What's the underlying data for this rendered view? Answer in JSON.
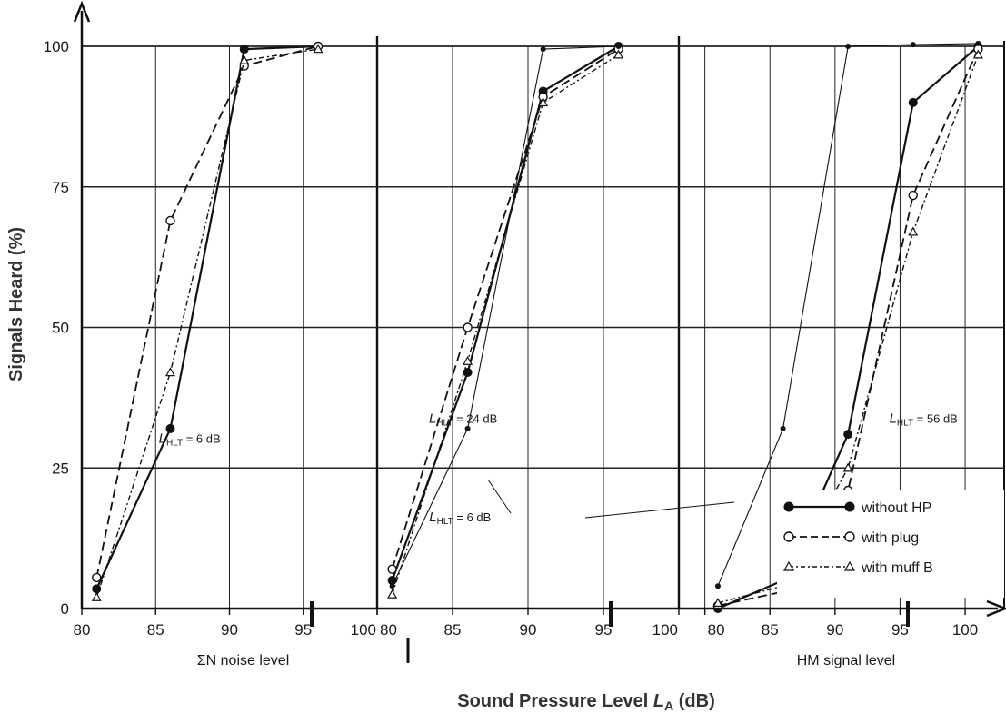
{
  "chart_data": {
    "type": "line",
    "title": "",
    "ylabel": "Signals Heard (%)",
    "xlabel_main": "Sound Pressure Level ",
    "xlabel_italic": "L",
    "xlabel_sub": "A",
    "xlabel_tail": " (dB)",
    "y_ticks": [
      "0",
      "25",
      "50",
      "75",
      "100"
    ],
    "ylim": [
      0,
      100
    ],
    "grid": true,
    "legend_position": "bottom-right",
    "legend": [
      {
        "label": "without HP",
        "style": "solid",
        "marker": "filled-circle"
      },
      {
        "label": "with plug",
        "style": "dashed",
        "marker": "open-circle"
      },
      {
        "label": "with muff B",
        "style": "dash-dot",
        "marker": "open-triangle"
      }
    ],
    "panels": [
      {
        "xlabel": "ΣN noise level",
        "x_ticks": [
          "80",
          "85",
          "90",
          "95",
          "100"
        ],
        "xlim": [
          80,
          100
        ],
        "annotations": [
          {
            "italic": "L",
            "sub": "HLT",
            "rest": " = 6 dB",
            "x": 87.3,
            "y": 29.5
          }
        ],
        "series": [
          {
            "name": "without HP",
            "x": [
              81,
              86,
              91,
              96
            ],
            "y": [
              3.5,
              32,
              99.5,
              100
            ]
          },
          {
            "name": "with plug",
            "x": [
              81,
              86,
              91,
              96
            ],
            "y": [
              5.5,
              69,
              96.5,
              100
            ]
          },
          {
            "name": "with muff B",
            "x": [
              81,
              86,
              91,
              96
            ],
            "y": [
              2,
              42,
              97.5,
              99.5
            ]
          }
        ]
      },
      {
        "xlabel": "",
        "x_ticks": [
          "80",
          "85",
          "90",
          "95",
          "100"
        ],
        "xlim": [
          80,
          100
        ],
        "annotations": [
          {
            "italic": "L",
            "sub": "HLT",
            "rest": " = 24 dB",
            "x": 85.7,
            "y": 33
          },
          {
            "italic": "L",
            "sub": "HLT",
            "rest": " = 6 dB",
            "x": 85.5,
            "y": 15.5
          }
        ],
        "series": [
          {
            "name": "without HP",
            "x": [
              81,
              86,
              91,
              96
            ],
            "y": [
              5,
              42,
              92,
              100
            ]
          },
          {
            "name": "with plug",
            "x": [
              81,
              86,
              91,
              96
            ],
            "y": [
              7,
              50,
              91,
              99.5
            ]
          },
          {
            "name": "with muff B",
            "x": [
              81,
              86,
              91,
              96
            ],
            "y": [
              2.5,
              44,
              90,
              98.5
            ]
          },
          {
            "name": "L_HLT = 6 dB",
            "x": [
              81,
              86,
              91,
              96
            ],
            "y": [
              4,
              32,
              99.5,
              100
            ]
          }
        ]
      },
      {
        "xlabel": "HM signal level",
        "x_ticks": [
          "80",
          "85",
          "90",
          "95",
          "100"
        ],
        "xlim": [
          78,
          103
        ],
        "annotations": [
          {
            "italic": "L",
            "sub": "HLT",
            "rest": " = 56 dB",
            "x": 96.8,
            "y": 33
          }
        ],
        "series": [
          {
            "name": "without HP",
            "x": [
              81,
              86,
              91,
              96,
              101
            ],
            "y": [
              0,
              5,
              31,
              90,
              100
            ]
          },
          {
            "name": "with plug",
            "x": [
              81,
              86,
              91,
              96,
              101
            ],
            "y": [
              0.5,
              3,
              21,
              73.5,
              99.5
            ]
          },
          {
            "name": "with muff B",
            "x": [
              81,
              86,
              91,
              96,
              101
            ],
            "y": [
              1,
              4,
              25,
              67,
              98.5
            ]
          },
          {
            "name": "L_HLT = 6 dB",
            "x": [
              81,
              86,
              91,
              96,
              101
            ],
            "y": [
              4,
              32,
              100,
              100.3,
              100.5
            ]
          }
        ]
      }
    ]
  }
}
